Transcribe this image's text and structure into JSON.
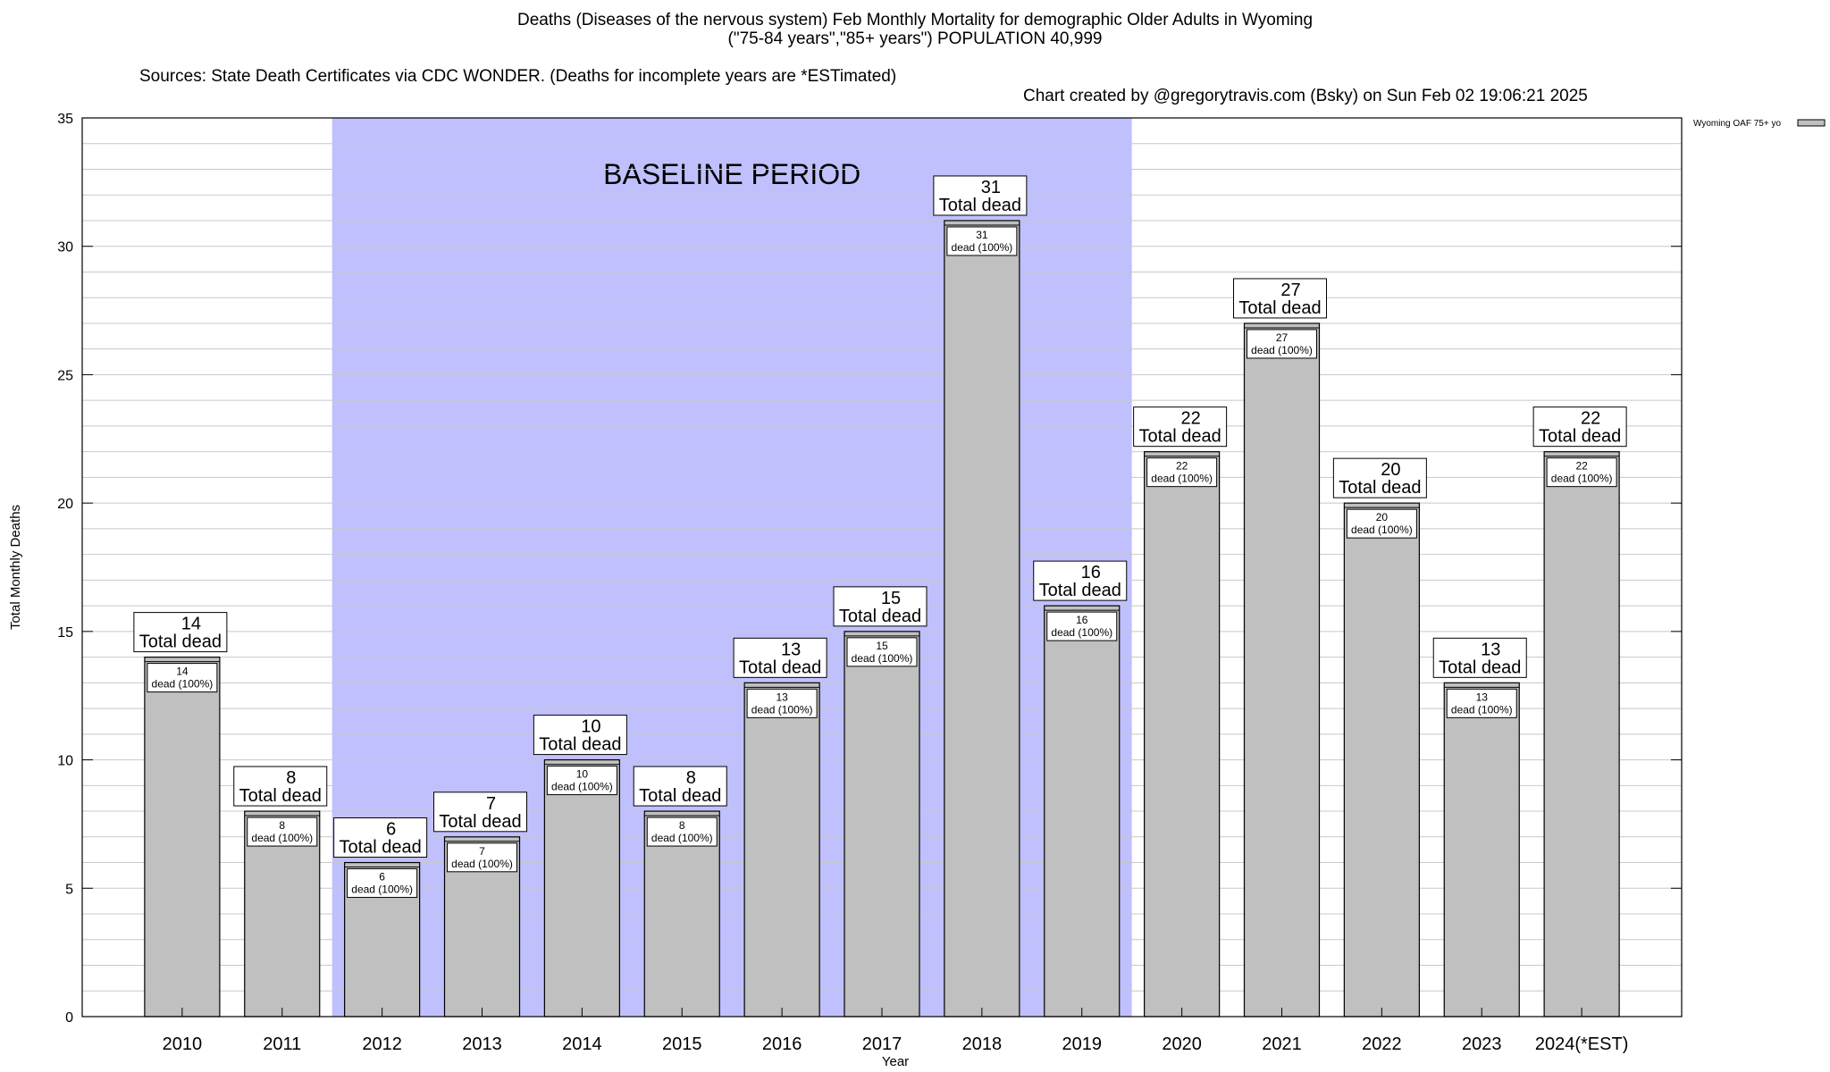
{
  "title_line1": "Deaths (Diseases of the nervous system) Feb Monthly Mortality for demographic Older Adults in Wyoming",
  "title_line2": "(\"75-84 years\",\"85+ years\") POPULATION 40,999",
  "sources": "Sources: State Death Certificates via CDC WONDER. (Deaths for incomplete years are *ESTimated)",
  "credit": "Chart created by @gregorytravis.com (Bsky) on Sun Feb 02 19:06:21 2025",
  "chart_data": {
    "type": "bar",
    "xlabel": "Year",
    "ylabel": "Total Monthly Deaths",
    "ylim": [
      0,
      35
    ],
    "yticks": [
      0,
      5,
      10,
      15,
      20,
      25,
      30,
      35
    ],
    "grid": true,
    "legend": "top-right",
    "categories": [
      "2010",
      "2011",
      "2012",
      "2013",
      "2014",
      "2015",
      "2016",
      "2017",
      "2018",
      "2019",
      "2020",
      "2021",
      "2022",
      "2023",
      "2024(*EST)"
    ],
    "series": [
      {
        "name": "Wyoming OAF 75+ yo",
        "color": "#c0c0c0",
        "values": [
          14,
          8,
          6,
          7,
          10,
          8,
          13,
          15,
          31,
          16,
          22,
          27,
          20,
          13,
          22
        ]
      }
    ],
    "top_label_suffix": "Total dead",
    "inner_label_suffix": "dead (100%)",
    "baseline_period": {
      "label": "BASELINE PERIOD",
      "start": "2012",
      "end": "2019",
      "color": "#c0c0ff"
    }
  }
}
